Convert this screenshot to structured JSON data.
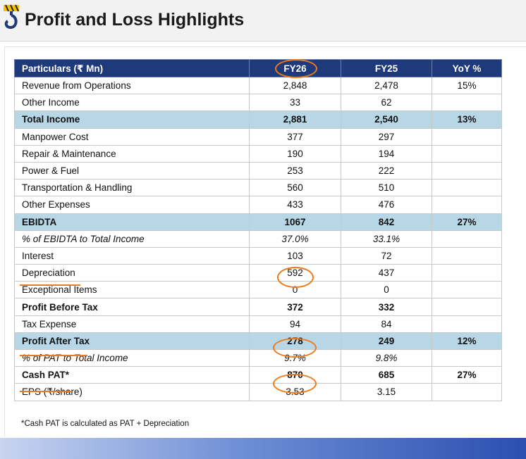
{
  "page": {
    "title": "Profit and Loss Highlights"
  },
  "table": {
    "headers": [
      "Particulars (₹ Mn)",
      "FY26",
      "FY25",
      "YoY %"
    ],
    "rows": [
      {
        "label": "Revenue from Operations",
        "fy26": "2,848",
        "fy25": "2,478",
        "yoy": "15%",
        "style": ""
      },
      {
        "label": "Other Income",
        "fy26": "33",
        "fy25": "62",
        "yoy": "",
        "style": ""
      },
      {
        "label": "Total Income",
        "fy26": "2,881",
        "fy25": "2,540",
        "yoy": "13%",
        "style": "hl"
      },
      {
        "label": "Manpower Cost",
        "fy26": "377",
        "fy25": "297",
        "yoy": "",
        "style": ""
      },
      {
        "label": "Repair & Maintenance",
        "fy26": "190",
        "fy25": "194",
        "yoy": "",
        "style": ""
      },
      {
        "label": "Power & Fuel",
        "fy26": "253",
        "fy25": "222",
        "yoy": "",
        "style": ""
      },
      {
        "label": "Transportation & Handling",
        "fy26": "560",
        "fy25": "510",
        "yoy": "",
        "style": ""
      },
      {
        "label": "Other Expenses",
        "fy26": "433",
        "fy25": "476",
        "yoy": "",
        "style": ""
      },
      {
        "label": "EBIDTA",
        "fy26": "1067",
        "fy25": "842",
        "yoy": "27%",
        "style": "hl"
      },
      {
        "label": "% of EBIDTA to Total Income",
        "fy26": "37.0%",
        "fy25": "33.1%",
        "yoy": "",
        "style": "ital"
      },
      {
        "label": "Interest",
        "fy26": "103",
        "fy25": "72",
        "yoy": "",
        "style": ""
      },
      {
        "label": "Depreciation",
        "fy26": "592",
        "fy25": "437",
        "yoy": "",
        "style": ""
      },
      {
        "label": "Exceptional Items",
        "fy26": "0",
        "fy25": "0",
        "yoy": "",
        "style": ""
      },
      {
        "label": "Profit Before Tax",
        "fy26": "372",
        "fy25": "332",
        "yoy": "",
        "style": "bold"
      },
      {
        "label": "Tax Expense",
        "fy26": "94",
        "fy25": "84",
        "yoy": "",
        "style": ""
      },
      {
        "label": "Profit After Tax",
        "fy26": "278",
        "fy25": "249",
        "yoy": "12%",
        "style": "hl"
      },
      {
        "label": "% of PAT to Total Income",
        "fy26": "9.7%",
        "fy25": "9.8%",
        "yoy": "",
        "style": "ital"
      },
      {
        "label": "Cash PAT*",
        "fy26": "870",
        "fy25": "685",
        "yoy": "27%",
        "style": "bold"
      },
      {
        "label": "EPS (₹/share)",
        "fy26": "3.53",
        "fy25": "3.15",
        "yoy": "",
        "style": ""
      }
    ]
  },
  "footnote": "*Cash PAT is calculated as PAT + Depreciation",
  "colors": {
    "header_bg": "#1f3a7a",
    "highlight_row_bg": "#b7d6e6",
    "annotation": "#ef7a1a"
  }
}
